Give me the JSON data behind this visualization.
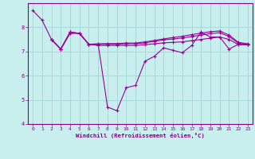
{
  "xlabel": "Windchill (Refroidissement éolien,°C)",
  "bg_color": "#c8eeed",
  "grid_color": "#a8d8d8",
  "line_color": "#990099",
  "xlim": [
    -0.5,
    23.5
  ],
  "ylim": [
    4,
    9
  ],
  "yticks": [
    4,
    5,
    6,
    7,
    8
  ],
  "xticks": [
    0,
    1,
    2,
    3,
    4,
    5,
    6,
    7,
    8,
    9,
    10,
    11,
    12,
    13,
    14,
    15,
    16,
    17,
    18,
    19,
    20,
    21,
    22,
    23
  ],
  "curves": [
    {
      "x": [
        0,
        1,
        2,
        3,
        4,
        5,
        6,
        7,
        8,
        9,
        10,
        11,
        12,
        13,
        14,
        15,
        16,
        17,
        18,
        19,
        20,
        21,
        22,
        23
      ],
      "y": [
        8.7,
        8.3,
        7.5,
        7.1,
        7.75,
        7.75,
        7.3,
        7.3,
        4.7,
        4.55,
        5.5,
        5.6,
        6.6,
        6.8,
        7.15,
        7.05,
        6.95,
        7.25,
        7.8,
        7.6,
        7.6,
        7.1,
        7.3,
        7.3
      ]
    },
    {
      "x": [
        2,
        3,
        4,
        5,
        6,
        7,
        8,
        9,
        10,
        11,
        12,
        13,
        14,
        15,
        16,
        17,
        18,
        19,
        20,
        21,
        22,
        23
      ],
      "y": [
        7.5,
        7.1,
        7.8,
        7.75,
        7.3,
        7.25,
        7.25,
        7.25,
        7.25,
        7.25,
        7.28,
        7.32,
        7.36,
        7.38,
        7.4,
        7.45,
        7.5,
        7.55,
        7.6,
        7.5,
        7.28,
        7.28
      ]
    },
    {
      "x": [
        2,
        3,
        4,
        5,
        6,
        7,
        8,
        9,
        10,
        11,
        12,
        13,
        14,
        15,
        16,
        17,
        18,
        19,
        20,
        21,
        22,
        23
      ],
      "y": [
        7.5,
        7.1,
        7.8,
        7.75,
        7.3,
        7.3,
        7.3,
        7.3,
        7.32,
        7.32,
        7.36,
        7.42,
        7.48,
        7.52,
        7.56,
        7.62,
        7.68,
        7.74,
        7.78,
        7.62,
        7.34,
        7.3
      ]
    },
    {
      "x": [
        2,
        3,
        4,
        5,
        6,
        7,
        8,
        9,
        10,
        11,
        12,
        13,
        14,
        15,
        16,
        17,
        18,
        19,
        20,
        21,
        22,
        23
      ],
      "y": [
        7.5,
        7.1,
        7.8,
        7.75,
        7.3,
        7.32,
        7.33,
        7.33,
        7.35,
        7.35,
        7.4,
        7.46,
        7.52,
        7.58,
        7.63,
        7.7,
        7.76,
        7.82,
        7.85,
        7.68,
        7.38,
        7.32
      ]
    }
  ]
}
